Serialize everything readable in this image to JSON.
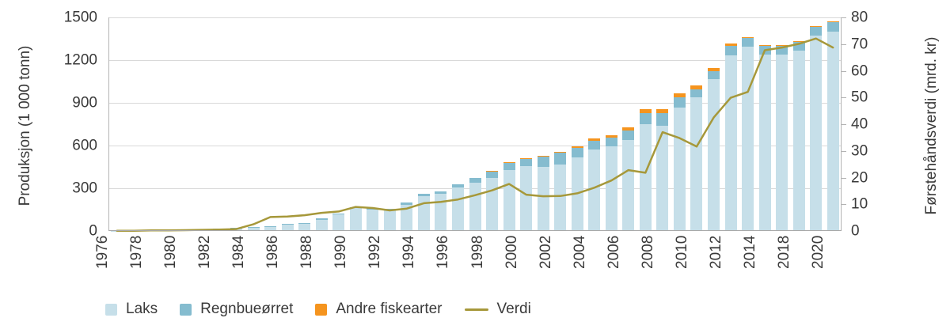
{
  "chart_data": {
    "type": "bar",
    "subtype": "stacked-bars-with-line-overlay",
    "title": "",
    "categories": [
      "1976",
      "1977",
      "1978",
      "1979",
      "1980",
      "1981",
      "1982",
      "1983",
      "1984",
      "1985",
      "1986",
      "1987",
      "1988",
      "1989",
      "1990",
      "1991",
      "1992",
      "1993",
      "1994",
      "1995",
      "1996",
      "1997",
      "1998",
      "1999",
      "2000",
      "2001",
      "2002",
      "2003",
      "2004",
      "2005",
      "2006",
      "2007",
      "2008",
      "2009",
      "2010",
      "2011",
      "2012",
      "2013",
      "2014",
      "2017",
      "2018",
      "2019",
      "2020"
    ],
    "x_tick_labels": [
      "1976",
      "1978",
      "1980",
      "1982",
      "1984",
      "1986",
      "1988",
      "1990",
      "1992",
      "1994",
      "1996",
      "1998",
      "2000",
      "2002",
      "2004",
      "2006",
      "2008",
      "2010",
      "2012",
      "2014",
      "2018",
      "2020"
    ],
    "series": [
      {
        "name": "Laks",
        "type": "bar",
        "color": "#c6dfe9",
        "axis": "left",
        "values": [
          2,
          3,
          4,
          4,
          5,
          9,
          11,
          18,
          25,
          30,
          46,
          49,
          80,
          114,
          160,
          152,
          145,
          185,
          245,
          262,
          305,
          340,
          370,
          430,
          455,
          450,
          465,
          515,
          570,
          595,
          640,
          750,
          740,
          865,
          940,
          1066,
          1232,
          1295,
          1240,
          1238,
          1268,
          1370,
          1398
        ]
      },
      {
        "name": "Regnbueørret",
        "type": "bar",
        "color": "#85bccf",
        "axis": "left",
        "values": [
          1,
          1,
          2,
          2,
          3,
          3,
          4,
          5,
          4,
          5,
          5,
          8,
          9,
          10,
          6,
          10,
          13,
          15,
          18,
          15,
          25,
          30,
          48,
          50,
          50,
          72,
          84,
          70,
          64,
          60,
          64,
          78,
          86,
          74,
          55,
          58,
          70,
          64,
          64,
          66,
          64,
          64,
          68
        ]
      },
      {
        "name": "Andre fiskearter",
        "type": "bar",
        "color": "#f5941e",
        "axis": "left",
        "values": [
          0,
          0,
          0,
          0,
          0,
          0,
          0,
          0,
          0,
          0,
          0,
          0,
          0,
          0,
          0,
          0,
          0,
          0,
          0,
          0,
          0,
          0,
          2,
          3,
          5,
          7,
          9,
          11,
          15,
          19,
          22,
          27,
          32,
          29,
          26,
          19,
          12,
          4,
          3,
          3,
          4,
          4,
          5
        ]
      },
      {
        "name": "Verdi",
        "type": "line",
        "color": "#a6983a",
        "axis": "right",
        "values": [
          0.1,
          0.1,
          0.2,
          0.2,
          0.3,
          0.4,
          0.5,
          0.7,
          2.5,
          5.2,
          5.4,
          5.9,
          6.8,
          7.3,
          9.0,
          8.6,
          7.7,
          8.4,
          10.4,
          10.9,
          11.8,
          13.4,
          15.2,
          17.6,
          13.6,
          13.0,
          13.1,
          14.1,
          16.2,
          18.9,
          22.8,
          21.8,
          37.0,
          34.8,
          31.6,
          42.5,
          49.9,
          52.1,
          67.7,
          68.7,
          70.1,
          72.1,
          68.7
        ]
      }
    ],
    "left_axis": {
      "label": "Produksjon (1 000 tonn)",
      "ticks": [
        0,
        300,
        600,
        900,
        1200,
        1500
      ],
      "min": 0,
      "max": 1500
    },
    "right_axis": {
      "label": "Førstehåndsverdi (mrd. kr)",
      "ticks": [
        0,
        10,
        20,
        30,
        40,
        50,
        60,
        70,
        80
      ],
      "min": 0,
      "max": 80
    },
    "grid": "horizontal",
    "legend_position": "bottom-left",
    "legend": [
      "Laks",
      "Regnbueørret",
      "Andre fiskearter",
      "Verdi"
    ]
  },
  "colors": {
    "laks": "#c6dfe9",
    "regnbueorret": "#85bccf",
    "andre_fiskearter": "#f5941e",
    "verdi_line": "#a6983a",
    "text": "#3a3a3a",
    "gridline": "#d9d9d9",
    "axis_line": "#b3b3b3"
  }
}
